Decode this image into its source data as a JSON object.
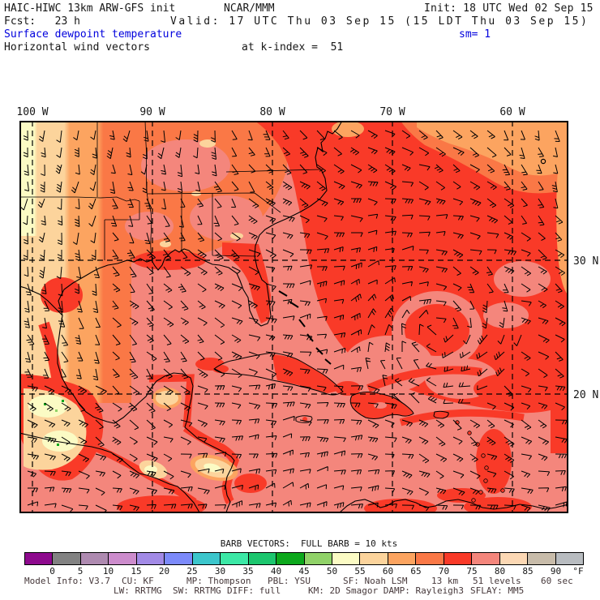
{
  "header": {
    "model_title": "HAIC-HIWC 13km ARW-GFS init",
    "org": "NCAR/MMM",
    "init": "Init: 18 UTC Wed 02 Sep 15",
    "fcst": "Fcst:   23 h",
    "valid": "Valid: 17 UTC Thu 03 Sep 15 (15 LDT Thu 03 Sep 15)",
    "field_title": "Surface dewpoint temperature",
    "smoothing": "sm= 1",
    "field_subtitle": "Horizontal wind vectors",
    "level": "at k-index =  51"
  },
  "map_axes": {
    "lon_labels": [
      "100 W",
      "90 W",
      "80 W",
      "70 W",
      "60 W"
    ],
    "lat_labels": [
      "30 N",
      "20 N"
    ]
  },
  "legend": {
    "caption": "BARB VECTORS:  FULL BARB = 10 kts",
    "unit": "°F",
    "ticks": [
      "0",
      "5",
      "10",
      "15",
      "20",
      "25",
      "30",
      "35",
      "40",
      "45",
      "50",
      "55",
      "60",
      "65",
      "70",
      "75",
      "80",
      "85",
      "90"
    ],
    "colors": [
      "#8e0a8e",
      "#828282",
      "#ae8ab0",
      "#cc8ccc",
      "#a28ae6",
      "#7c8afa",
      "#3cc6cc",
      "#3ce8a6",
      "#1cc66e",
      "#0ca81c",
      "#90d268",
      "#fbfbc4",
      "#fcd49c",
      "#fca460",
      "#fa7846",
      "#f93a28",
      "#f4867c",
      "#fcd8b4",
      "#c8bcaa",
      "#b8bcc0"
    ]
  },
  "footer": {
    "line1": [
      "Model Info: V3.7",
      "CU: KF",
      "MP: Thompson",
      "PBL: YSU",
      "SF: Noah LSM",
      "13 km",
      "51 levels",
      "60 sec"
    ],
    "line2": [
      "LW: RRTMG",
      "SW: RRTMG",
      "DIFF: full",
      "KM: 2D Smagor DAMP: Rayleigh3",
      "SFLAY: MM5"
    ]
  },
  "colors": {
    "title_blue": "#0000dd",
    "footer_text": "#46383a",
    "line_black": "#000000"
  },
  "chart_data": {
    "type": "heatmap",
    "title": "Surface dewpoint temperature",
    "subtitle": "Horizontal wind vectors at k-index = 51",
    "units": "°F",
    "colorbar_levels": [
      0,
      5,
      10,
      15,
      20,
      25,
      30,
      35,
      40,
      45,
      50,
      55,
      60,
      65,
      70,
      75,
      80,
      85,
      90
    ],
    "colorbar_colors": [
      "#8e0a8e",
      "#828282",
      "#ae8ab0",
      "#cc8ccc",
      "#a28ae6",
      "#7c8afa",
      "#3cc6cc",
      "#3ce8a6",
      "#1cc66e",
      "#0ca81c",
      "#90d268",
      "#fbfbc4",
      "#fcd49c",
      "#fca460",
      "#fa7846",
      "#f93a28",
      "#f4867c",
      "#fcd8b4",
      "#c8bcaa",
      "#b8bcc0"
    ],
    "x_ticks": [
      "100 W",
      "90 W",
      "80 W",
      "70 W",
      "60 W"
    ],
    "y_ticks": [
      "30 N",
      "20 N"
    ],
    "legend": "BARB VECTORS:  FULL BARB = 10 kts",
    "dominant_values_f": {
      "gulf_and_caribbean": "75-80",
      "atlantic": "70-75",
      "mexico_highlands": "50-55",
      "west_texas": "50-65"
    }
  }
}
